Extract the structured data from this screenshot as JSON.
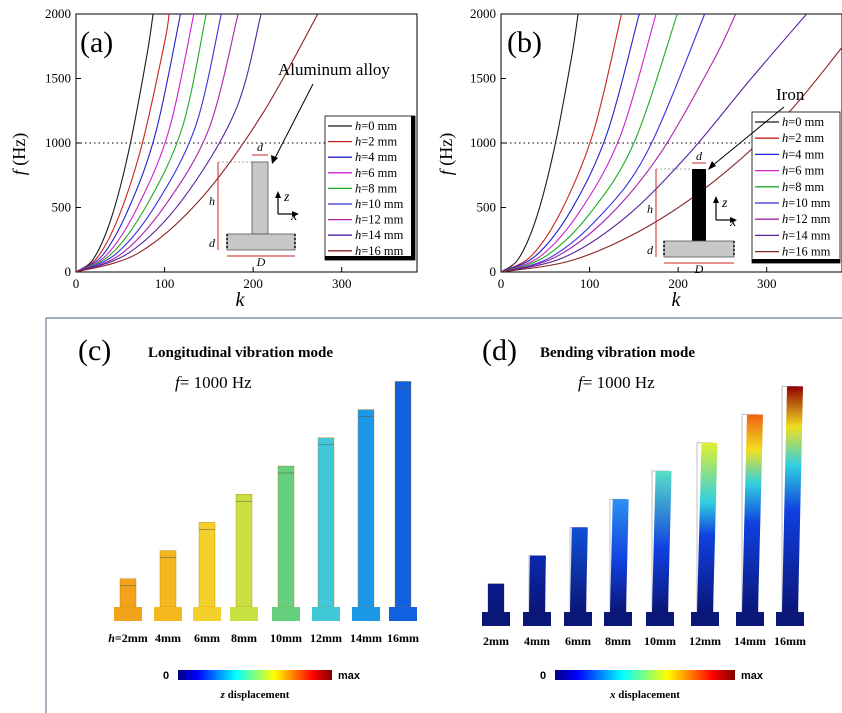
{
  "chart_data": [
    {
      "type": "line",
      "panel": "(a)",
      "xlabel": "k",
      "ylabel_italic": "f",
      "ylabel_unit": "(Hz)",
      "xlim": [
        0,
        385
      ],
      "ylim": [
        0,
        2000
      ],
      "xticks": [
        0,
        100,
        200,
        300
      ],
      "yticks": [
        0,
        500,
        1000,
        1500,
        2000
      ],
      "reference_line": {
        "y": 1000,
        "style": "dotted"
      },
      "legend_prefix": "h",
      "series": [
        {
          "name": "=0 mm",
          "color": "#1a1a1a",
          "x": [
            0,
            20,
            40,
            60,
            80,
            87
          ],
          "y": [
            0,
            105,
            420,
            950,
            1680,
            2000
          ]
        },
        {
          "name": "=2 mm",
          "color": "#cc2222",
          "x": [
            0,
            25,
            50,
            75,
            100,
            105
          ],
          "y": [
            0,
            120,
            460,
            1000,
            1780,
            2000
          ]
        },
        {
          "name": "=4 mm",
          "color": "#2222cc",
          "x": [
            0,
            30,
            60,
            90,
            118
          ],
          "y": [
            0,
            130,
            500,
            1080,
            2000
          ]
        },
        {
          "name": "=6 mm",
          "color": "#cc22cc",
          "x": [
            0,
            35,
            70,
            105,
            133
          ],
          "y": [
            0,
            135,
            510,
            1100,
            2000
          ]
        },
        {
          "name": "=8 mm",
          "color": "#22aa22",
          "x": [
            0,
            40,
            80,
            120,
            147
          ],
          "y": [
            0,
            140,
            520,
            1120,
            2000
          ]
        },
        {
          "name": "=10 mm",
          "color": "#3333dd",
          "x": [
            0,
            45,
            90,
            135,
            164
          ],
          "y": [
            0,
            140,
            520,
            1130,
            2000
          ]
        },
        {
          "name": "=12 mm",
          "color": "#aa22aa",
          "x": [
            0,
            50,
            100,
            150,
            183
          ],
          "y": [
            0,
            135,
            510,
            1110,
            2000
          ]
        },
        {
          "name": "=14 mm",
          "color": "#552299",
          "x": [
            0,
            60,
            120,
            180,
            209
          ],
          "y": [
            0,
            150,
            560,
            1250,
            2000
          ]
        },
        {
          "name": "=16 mm",
          "color": "#882222",
          "x": [
            0,
            70,
            140,
            210,
            273
          ],
          "y": [
            0,
            145,
            560,
            1220,
            2000
          ]
        }
      ],
      "annotations": {
        "material": "Aluminum alloy",
        "dim_d": "d",
        "dim_h": "h",
        "dim_D": "D",
        "axis_z": "z",
        "axis_x": "x"
      }
    },
    {
      "type": "line",
      "panel": "(b)",
      "xlabel": "k",
      "ylabel_italic": "f",
      "ylabel_unit": "(Hz)",
      "xlim": [
        0,
        385
      ],
      "ylim": [
        0,
        2000
      ],
      "xticks": [
        0,
        100,
        200,
        300
      ],
      "yticks": [
        0,
        500,
        1000,
        1500,
        2000
      ],
      "reference_line": {
        "y": 1000,
        "style": "dotted"
      },
      "legend_prefix": "h",
      "series": [
        {
          "name": "=0 mm",
          "color": "#1a1a1a",
          "x": [
            0,
            20,
            40,
            60,
            80,
            87
          ],
          "y": [
            0,
            105,
            420,
            950,
            1680,
            2000
          ]
        },
        {
          "name": "=2 mm",
          "color": "#cc2222",
          "x": [
            0,
            35,
            70,
            105,
            136
          ],
          "y": [
            0,
            130,
            500,
            1100,
            2000
          ]
        },
        {
          "name": "=4 mm",
          "color": "#2222cc",
          "x": [
            0,
            40,
            80,
            120,
            156
          ],
          "y": [
            0,
            130,
            490,
            1080,
            2000
          ]
        },
        {
          "name": "=6 mm",
          "color": "#cc22cc",
          "x": [
            0,
            45,
            90,
            135,
            175
          ],
          "y": [
            0,
            125,
            480,
            1060,
            2000
          ]
        },
        {
          "name": "=8 mm",
          "color": "#22aa22",
          "x": [
            0,
            50,
            100,
            150,
            199
          ],
          "y": [
            0,
            120,
            450,
            1000,
            2000
          ]
        },
        {
          "name": "=10 mm",
          "color": "#3333dd",
          "x": [
            0,
            55,
            110,
            165,
            230
          ],
          "y": [
            0,
            110,
            420,
            930,
            2000
          ]
        },
        {
          "name": "=12 mm",
          "color": "#aa22aa",
          "x": [
            0,
            60,
            120,
            180,
            240,
            265
          ],
          "y": [
            0,
            110,
            420,
            920,
            1640,
            2000
          ]
        },
        {
          "name": "=14 mm",
          "color": "#552299",
          "x": [
            0,
            70,
            140,
            210,
            280,
            345
          ],
          "y": [
            0,
            110,
            420,
            900,
            1480,
            2000
          ]
        },
        {
          "name": "=16 mm",
          "color": "#882222",
          "x": [
            0,
            80,
            160,
            240,
            320,
            385
          ],
          "y": [
            0,
            90,
            330,
            700,
            1200,
            1740
          ]
        }
      ],
      "annotations": {
        "material": "Iron",
        "dim_d": "d",
        "dim_h": "h",
        "dim_D": "D",
        "axis_z": "z",
        "axis_x": "x"
      }
    }
  ],
  "panel_c": {
    "label": "(c)",
    "title": "Longitudinal vibration mode",
    "freq_italic": "f",
    "freq_value": "= 1000 Hz",
    "colorbar_min": "0",
    "colorbar_max": "max",
    "colorbar_label_italic": "z",
    "colorbar_label": " displacement",
    "first_label_prefix": "h",
    "labels": [
      "=2mm",
      "4mm",
      "6mm",
      "8mm",
      "10mm",
      "12mm",
      "14mm",
      "16mm"
    ],
    "heights_mm": [
      2,
      4,
      6,
      8,
      10,
      12,
      14,
      16
    ],
    "colors": [
      "#f2a319",
      "#f4b81e",
      "#f5d02a",
      "#c8e040",
      "#66d080",
      "#40c8d8",
      "#1c98e8",
      "#1060e0"
    ]
  },
  "panel_d": {
    "label": "(d)",
    "title": "Bending vibration mode",
    "freq_italic": "f",
    "freq_value": "= 1000 Hz",
    "colorbar_min": "0",
    "colorbar_max": "max",
    "colorbar_label_italic": "x",
    "colorbar_label": " displacement",
    "labels": [
      "2mm",
      "4mm",
      "6mm",
      "8mm",
      "10mm",
      "12mm",
      "14mm",
      "16mm"
    ],
    "heights_mm": [
      2,
      4,
      6,
      8,
      10,
      12,
      14,
      16
    ],
    "top_colors": [
      "#0a1a8c",
      "#0a28b0",
      "#1050d8",
      "#2c90f0",
      "#58e0c8",
      "#e0f030",
      "#f06010",
      "#900000"
    ]
  }
}
